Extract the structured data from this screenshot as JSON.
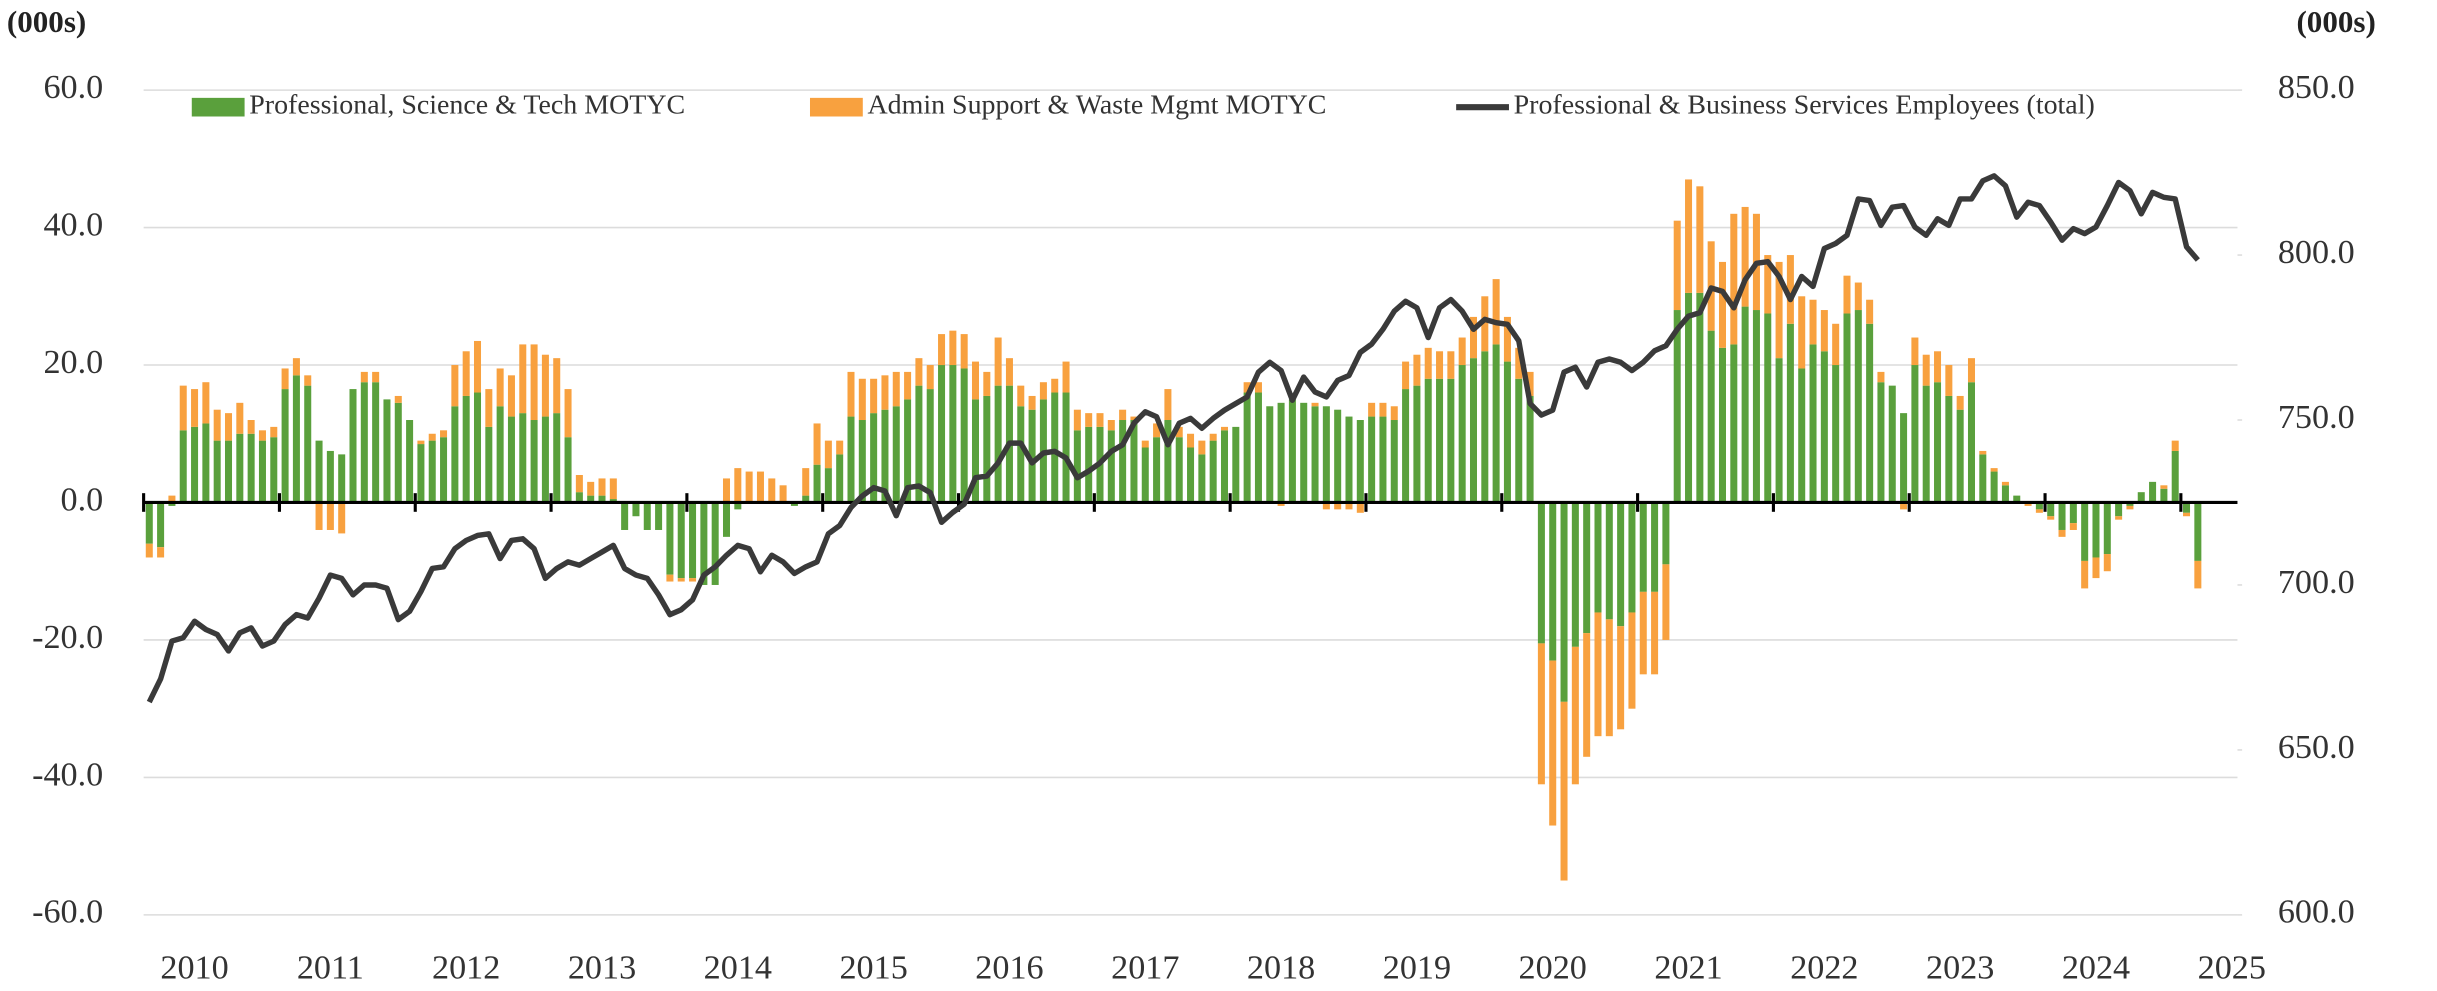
{
  "chart_data": {
    "type": "bar_line",
    "y_axis_label": "(000s)",
    "y2_axis_label": "(000s)",
    "categories": [
      null,
      null,
      null,
      null,
      "2010",
      null,
      null,
      null,
      null,
      null,
      null,
      null,
      null,
      null,
      null,
      null,
      "2011",
      null,
      null,
      null,
      null,
      null,
      null,
      null,
      null,
      null,
      null,
      null,
      "2012",
      null,
      null,
      null,
      null,
      null,
      null,
      null,
      null,
      null,
      null,
      null,
      "2013",
      null,
      null,
      null,
      null,
      null,
      null,
      null,
      null,
      null,
      null,
      null,
      "2014",
      null,
      null,
      null,
      null,
      null,
      null,
      null,
      null,
      null,
      null,
      null,
      "2015",
      null,
      null,
      null,
      null,
      null,
      null,
      null,
      null,
      null,
      null,
      null,
      "2016",
      null,
      null,
      null,
      null,
      null,
      null,
      null,
      null,
      null,
      null,
      null,
      "2017",
      null,
      null,
      null,
      null,
      null,
      null,
      null,
      null,
      null,
      null,
      null,
      "2018",
      null,
      null,
      null,
      null,
      null,
      null,
      null,
      null,
      null,
      null,
      null,
      "2019",
      null,
      null,
      null,
      null,
      null,
      null,
      null,
      null,
      null,
      null,
      null,
      "2020",
      null,
      null,
      null,
      null,
      null,
      null,
      null,
      null,
      null,
      null,
      null,
      "2021",
      null,
      null,
      null,
      null,
      null,
      null,
      null,
      null,
      null,
      null,
      null,
      "2022",
      null,
      null,
      null,
      null,
      null,
      null,
      null,
      null,
      null,
      null,
      null,
      "2023",
      null,
      null,
      null,
      null,
      null,
      null,
      null,
      null,
      null,
      null,
      null,
      "2024",
      null,
      null,
      null,
      null,
      null,
      null,
      null,
      null,
      null,
      null,
      null,
      "2025"
    ],
    "series": [
      {
        "name": "Professional, Science & Tech MOTYC",
        "color": "#5aa03c",
        "type": "bar",
        "values": [
          -6,
          -6.5,
          -0.5,
          10.5,
          11,
          11.5,
          9,
          9,
          10,
          10,
          9,
          9.5,
          16.5,
          18.5,
          17,
          9,
          7.5,
          7,
          16.5,
          17.5,
          17.5,
          15,
          14.5,
          12,
          8.5,
          9,
          9.5,
          14,
          15.5,
          16,
          11,
          14,
          12.5,
          13,
          12,
          12.5,
          13,
          9.5,
          1.5,
          1,
          1,
          0.5,
          -4,
          -2,
          -4,
          -4,
          -10.5,
          -11,
          -11,
          -12,
          -12,
          -5,
          -1,
          0,
          0,
          0,
          0,
          -0.5,
          1,
          5.5,
          5,
          7,
          12.5,
          12,
          13,
          13.5,
          14,
          15,
          17,
          16.5,
          20,
          20,
          19.5,
          15,
          15.5,
          17,
          17,
          14,
          13.5,
          15,
          16,
          16,
          10.5,
          11,
          11,
          10.5,
          12,
          12,
          8,
          9.5,
          12,
          9.5,
          8,
          7,
          9,
          10.5,
          11,
          16,
          16,
          14,
          14.5,
          15,
          14.5,
          14,
          14,
          13.5,
          12.5,
          12,
          12.5,
          12.5,
          12,
          16.5,
          17,
          18,
          18,
          18,
          20,
          21,
          22,
          23,
          20.5,
          18,
          15.5,
          -20.5,
          -23,
          -29,
          -21,
          -19,
          -16,
          -17,
          -18,
          -16,
          -13,
          -13,
          -9,
          28,
          30.5,
          30.5,
          25,
          22.5,
          23,
          28.5,
          28,
          27.5,
          21,
          26,
          19.5,
          23,
          22,
          20,
          27.5,
          28,
          26,
          17.5,
          17,
          13,
          20,
          17,
          17.5,
          15.5,
          13.5,
          17.5,
          7,
          4.5,
          2.5,
          1,
          0,
          -1,
          -2,
          -4,
          -3,
          -8.5,
          -8,
          -7.5,
          -2,
          -0.5,
          1.5,
          3,
          2,
          7.5,
          -1.5,
          -8.5,
          null,
          null,
          null
        ]
      },
      {
        "name": "Admin Support & Waste Mgmt MOTYC",
        "color": "#f8a13f",
        "type": "bar",
        "values": [
          -2,
          -1.5,
          1,
          6.5,
          5.5,
          6,
          4.5,
          4,
          4.5,
          2,
          1.5,
          1.5,
          3,
          2.5,
          1.5,
          -4,
          -4,
          -4.5,
          0,
          1.5,
          1.5,
          0,
          1,
          0,
          0.5,
          1,
          1,
          6,
          6.5,
          7.5,
          5.5,
          5.5,
          6,
          10,
          11,
          9,
          8,
          7,
          2.5,
          2,
          2.5,
          3,
          0,
          0,
          0,
          0,
          -1,
          -0.5,
          -0.5,
          0,
          0,
          3.5,
          5,
          4.5,
          4.5,
          3.5,
          2.5,
          0,
          4,
          6,
          4,
          2,
          6.5,
          6,
          5,
          5,
          5,
          4,
          4,
          3.5,
          4.5,
          5,
          5,
          5.5,
          3.5,
          7,
          4,
          3,
          2,
          2.5,
          2,
          4.5,
          3,
          2,
          2,
          1.5,
          1.5,
          0.5,
          1,
          2,
          4.5,
          1.5,
          2,
          2,
          1,
          0.5,
          0,
          1.5,
          1.5,
          0,
          -0.5,
          0,
          0,
          0.5,
          -1,
          -1,
          -1,
          -1.5,
          2,
          2,
          2,
          4,
          4.5,
          4.5,
          4,
          4,
          4,
          6,
          8,
          9.5,
          6.5,
          4.5,
          3.5,
          -20.5,
          -24,
          -26,
          -20,
          -18,
          -18,
          -17,
          -15,
          -14,
          -12,
          -12,
          -11,
          13,
          16.5,
          15.5,
          13,
          12.5,
          19,
          14.5,
          14,
          8.5,
          14,
          10,
          10.5,
          6.5,
          6,
          6,
          5.5,
          4,
          3.5,
          1.5,
          0,
          -1,
          4,
          4.5,
          4.5,
          4.5,
          2,
          3.5,
          0.5,
          0.5,
          0.5,
          0,
          -0.5,
          -0.5,
          -0.5,
          -1,
          -1,
          -4,
          -3,
          -2.5,
          -0.5,
          -0.5,
          0,
          0,
          0.5,
          1.5,
          -0.5,
          -4,
          null,
          null,
          null
        ]
      },
      {
        "name": "Professional & Business Services Employees (total)",
        "color": "#3a3a3a",
        "type": "line",
        "axis": "y2",
        "values": [
          664.5,
          671.5,
          683,
          684,
          689,
          686.5,
          685,
          680,
          685.5,
          687,
          681.5,
          683,
          688,
          691,
          690,
          696,
          703,
          702,
          697,
          700,
          700,
          699,
          689.5,
          692,
          698,
          705,
          705.5,
          711,
          713.5,
          715,
          715.5,
          708,
          713.5,
          714,
          711,
          702,
          705,
          707,
          706,
          708,
          710,
          712,
          705,
          703,
          702,
          697,
          691,
          692.5,
          695.5,
          703,
          705.5,
          709,
          712,
          711,
          704,
          709,
          707,
          703.5,
          705.5,
          707,
          715.5,
          718,
          723.5,
          727,
          729.5,
          728.5,
          721,
          729.5,
          730,
          728,
          719,
          722,
          724.5,
          732.5,
          733,
          737,
          743,
          743,
          737,
          740,
          740.5,
          738.5,
          732.5,
          734.5,
          737,
          740.5,
          742.5,
          749,
          752.5,
          751,
          742.5,
          749,
          750.5,
          747.5,
          750.5,
          753,
          755,
          757,
          764.5,
          767.5,
          765,
          756,
          763,
          758.5,
          757,
          762,
          763.5,
          770.5,
          773,
          777.5,
          783,
          786,
          784,
          775,
          784,
          786.5,
          783,
          777.5,
          780.5,
          779.5,
          779,
          774,
          755,
          751.5,
          753,
          764.5,
          766,
          760,
          767.5,
          768.5,
          767.5,
          765,
          767.5,
          771,
          772.5,
          777.5,
          781.5,
          782.5,
          790,
          789,
          784,
          792.5,
          797.5,
          798,
          793.5,
          786.5,
          793.5,
          790.5,
          802,
          803.5,
          806,
          817,
          816.5,
          809,
          814.5,
          815,
          808.5,
          806,
          811,
          809,
          817,
          817,
          822.5,
          824,
          821,
          811.5,
          816,
          815,
          810,
          804.5,
          808,
          806.5,
          808.5,
          815,
          822,
          819.5,
          812.5,
          819,
          817.5,
          817,
          802.5,
          798.5,
          null,
          null,
          null
        ]
      }
    ],
    "ylim": [
      -60,
      60
    ],
    "yticks": [
      {
        "value": -60,
        "label": "-60.0"
      },
      {
        "value": -40,
        "label": "-40.0"
      },
      {
        "value": -20,
        "label": "-20.0"
      },
      {
        "value": 0,
        "label": "0.0"
      },
      {
        "value": 20,
        "label": "20.0"
      },
      {
        "value": 40,
        "label": "40.0"
      },
      {
        "value": 60,
        "label": "60.0"
      }
    ],
    "y2lim": [
      600,
      850
    ],
    "y2ticks": [
      {
        "value": 600,
        "label": "600.0"
      },
      {
        "value": 650,
        "label": "650.0"
      },
      {
        "value": 700,
        "label": "700.0"
      },
      {
        "value": 750,
        "label": "750.0"
      },
      {
        "value": 800,
        "label": "800.0"
      },
      {
        "value": 850,
        "label": "850.0"
      }
    ],
    "grid": true,
    "legend": "top"
  }
}
